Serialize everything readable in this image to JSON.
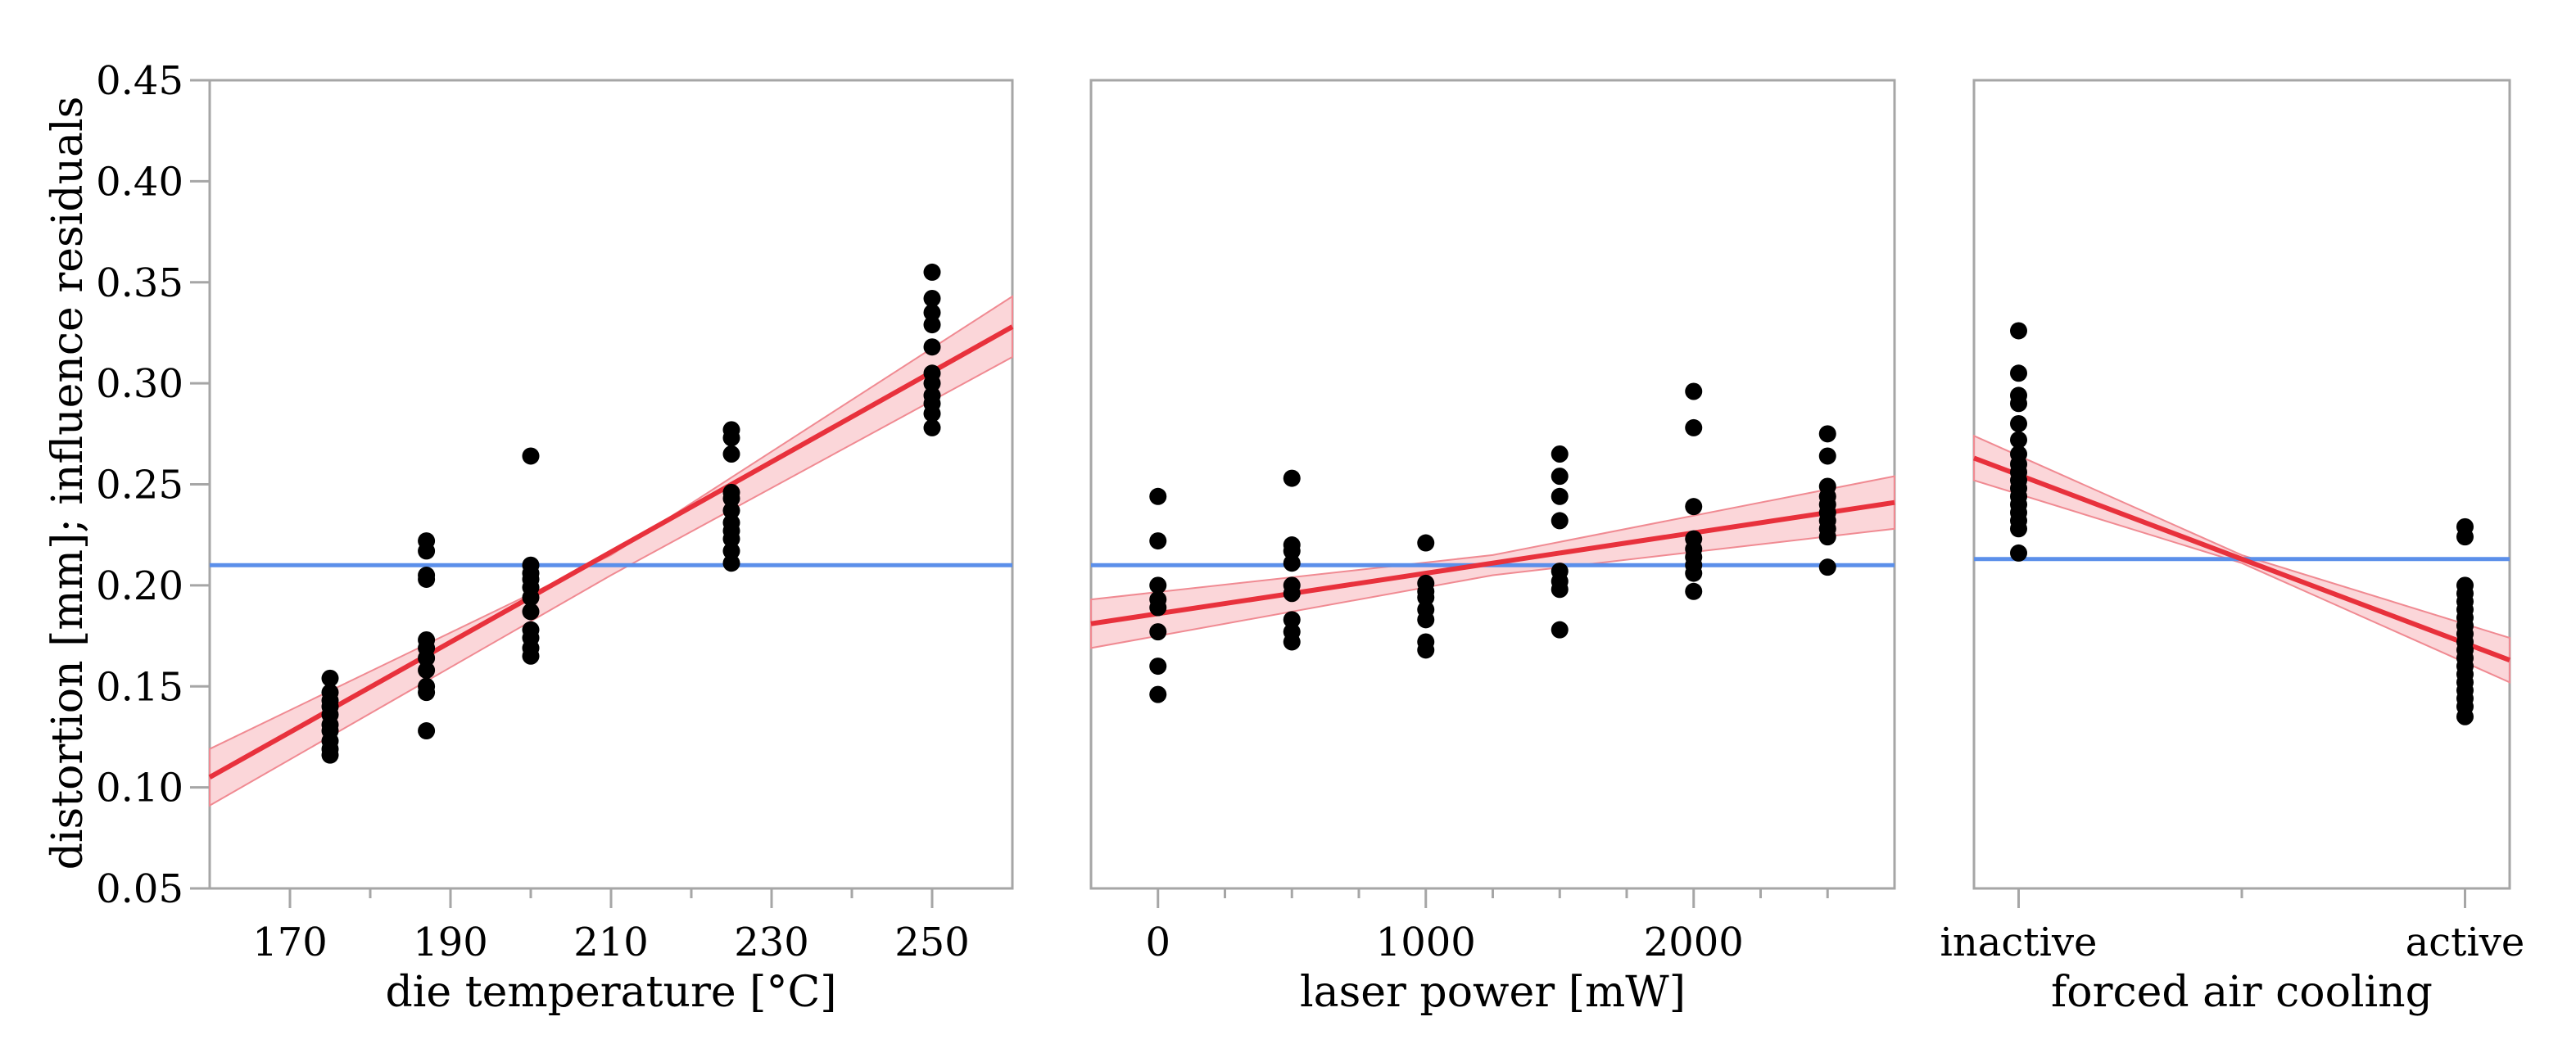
{
  "figure": {
    "ylabel": "distortion [mm]; influence residuals",
    "yticks": [
      "0.05",
      "0.10",
      "0.15",
      "0.20",
      "0.25",
      "0.30",
      "0.35",
      "0.40",
      "0.45"
    ],
    "colors": {
      "points": "#000000",
      "fit_line": "#e8313c",
      "confidence_band": "#f9c8cc",
      "mean_line": "#5b8fea",
      "frame": "#a6a6a6"
    }
  },
  "chart_data": [
    {
      "type": "scatter",
      "panel": "die-temperature",
      "xlabel": "die temperature [°C]",
      "xlim": [
        160,
        260
      ],
      "xticks": [
        170,
        190,
        210,
        230,
        250
      ],
      "xtick_labels": [
        "170",
        "190",
        "210",
        "230",
        "250"
      ],
      "minor_xticks": [
        180,
        200,
        220,
        240
      ],
      "ylim": [
        0.05,
        0.45
      ],
      "mean": 0.21,
      "fit": {
        "x": [
          160,
          260
        ],
        "y": [
          0.105,
          0.328
        ]
      },
      "band": {
        "x": [
          160,
          210,
          260
        ],
        "upper": [
          0.119,
          0.215,
          0.343
        ],
        "lower": [
          0.091,
          0.205,
          0.313
        ]
      },
      "points": [
        [
          175,
          0.154
        ],
        [
          175,
          0.147
        ],
        [
          175,
          0.143
        ],
        [
          175,
          0.14
        ],
        [
          175,
          0.136
        ],
        [
          175,
          0.131
        ],
        [
          175,
          0.128
        ],
        [
          175,
          0.123
        ],
        [
          175,
          0.119
        ],
        [
          175,
          0.116
        ],
        [
          187,
          0.222
        ],
        [
          187,
          0.217
        ],
        [
          187,
          0.205
        ],
        [
          187,
          0.203
        ],
        [
          187,
          0.173
        ],
        [
          187,
          0.169
        ],
        [
          187,
          0.164
        ],
        [
          187,
          0.158
        ],
        [
          187,
          0.15
        ],
        [
          187,
          0.147
        ],
        [
          187,
          0.128
        ],
        [
          200,
          0.264
        ],
        [
          200,
          0.21
        ],
        [
          200,
          0.206
        ],
        [
          200,
          0.203
        ],
        [
          200,
          0.199
        ],
        [
          200,
          0.194
        ],
        [
          200,
          0.187
        ],
        [
          200,
          0.178
        ],
        [
          200,
          0.174
        ],
        [
          200,
          0.169
        ],
        [
          200,
          0.165
        ],
        [
          225,
          0.277
        ],
        [
          225,
          0.273
        ],
        [
          225,
          0.265
        ],
        [
          225,
          0.246
        ],
        [
          225,
          0.243
        ],
        [
          225,
          0.237
        ],
        [
          225,
          0.231
        ],
        [
          225,
          0.227
        ],
        [
          225,
          0.223
        ],
        [
          225,
          0.217
        ],
        [
          225,
          0.211
        ],
        [
          250,
          0.355
        ],
        [
          250,
          0.342
        ],
        [
          250,
          0.335
        ],
        [
          250,
          0.329
        ],
        [
          250,
          0.318
        ],
        [
          250,
          0.305
        ],
        [
          250,
          0.3
        ],
        [
          250,
          0.294
        ],
        [
          250,
          0.29
        ],
        [
          250,
          0.285
        ],
        [
          250,
          0.278
        ]
      ]
    },
    {
      "type": "scatter",
      "panel": "laser-power",
      "xlabel": "laser power [mW]",
      "xlim": [
        -250,
        2750
      ],
      "xticks": [
        0,
        1000,
        2000
      ],
      "xtick_labels": [
        "0",
        "1000",
        "2000"
      ],
      "minor_xticks": [
        250,
        500,
        750,
        1250,
        1500,
        1750,
        2250,
        2500
      ],
      "ylim": [
        0.05,
        0.45
      ],
      "mean": 0.21,
      "fit": {
        "x": [
          -250,
          2750
        ],
        "y": [
          0.181,
          0.241
        ]
      },
      "band": {
        "x": [
          -250,
          1250,
          2750
        ],
        "upper": [
          0.193,
          0.215,
          0.254
        ],
        "lower": [
          0.169,
          0.205,
          0.228
        ]
      },
      "points": [
        [
          0,
          0.244
        ],
        [
          0,
          0.222
        ],
        [
          0,
          0.2
        ],
        [
          0,
          0.193
        ],
        [
          0,
          0.189
        ],
        [
          0,
          0.177
        ],
        [
          0,
          0.16
        ],
        [
          0,
          0.146
        ],
        [
          500,
          0.253
        ],
        [
          500,
          0.22
        ],
        [
          500,
          0.217
        ],
        [
          500,
          0.211
        ],
        [
          500,
          0.2
        ],
        [
          500,
          0.196
        ],
        [
          500,
          0.183
        ],
        [
          500,
          0.177
        ],
        [
          500,
          0.172
        ],
        [
          1000,
          0.221
        ],
        [
          1000,
          0.201
        ],
        [
          1000,
          0.197
        ],
        [
          1000,
          0.194
        ],
        [
          1000,
          0.188
        ],
        [
          1000,
          0.183
        ],
        [
          1000,
          0.172
        ],
        [
          1000,
          0.168
        ],
        [
          1500,
          0.265
        ],
        [
          1500,
          0.254
        ],
        [
          1500,
          0.244
        ],
        [
          1500,
          0.232
        ],
        [
          1500,
          0.207
        ],
        [
          1500,
          0.202
        ],
        [
          1500,
          0.198
        ],
        [
          1500,
          0.178
        ],
        [
          2000,
          0.296
        ],
        [
          2000,
          0.278
        ],
        [
          2000,
          0.239
        ],
        [
          2000,
          0.223
        ],
        [
          2000,
          0.218
        ],
        [
          2000,
          0.214
        ],
        [
          2000,
          0.21
        ],
        [
          2000,
          0.206
        ],
        [
          2000,
          0.197
        ],
        [
          2500,
          0.275
        ],
        [
          2500,
          0.264
        ],
        [
          2500,
          0.249
        ],
        [
          2500,
          0.244
        ],
        [
          2500,
          0.24
        ],
        [
          2500,
          0.236
        ],
        [
          2500,
          0.232
        ],
        [
          2500,
          0.228
        ],
        [
          2500,
          0.224
        ],
        [
          2500,
          0.209
        ]
      ]
    },
    {
      "type": "scatter",
      "panel": "forced-air-cooling",
      "xlabel": "forced air cooling",
      "categories": [
        "inactive",
        "active"
      ],
      "xlim": [
        -0.1,
        1.1
      ],
      "xticks": [
        0,
        1
      ],
      "xtick_labels": [
        "inactive",
        "active"
      ],
      "minor_xticks": [
        0.5
      ],
      "ylim": [
        0.05,
        0.45
      ],
      "mean": 0.213,
      "fit": {
        "x": [
          -0.1,
          1.1
        ],
        "y": [
          0.263,
          0.163
        ]
      },
      "band": {
        "x": [
          -0.1,
          0.5,
          1.1
        ],
        "upper": [
          0.274,
          0.215,
          0.174
        ],
        "lower": [
          0.252,
          0.211,
          0.152
        ]
      },
      "points": [
        [
          0,
          0.326
        ],
        [
          0,
          0.305
        ],
        [
          0,
          0.294
        ],
        [
          0,
          0.29
        ],
        [
          0,
          0.28
        ],
        [
          0,
          0.272
        ],
        [
          0,
          0.265
        ],
        [
          0,
          0.26
        ],
        [
          0,
          0.256
        ],
        [
          0,
          0.252
        ],
        [
          0,
          0.248
        ],
        [
          0,
          0.244
        ],
        [
          0,
          0.24
        ],
        [
          0,
          0.236
        ],
        [
          0,
          0.232
        ],
        [
          0,
          0.228
        ],
        [
          0,
          0.216
        ],
        [
          1,
          0.229
        ],
        [
          1,
          0.224
        ],
        [
          1,
          0.2
        ],
        [
          1,
          0.196
        ],
        [
          1,
          0.192
        ],
        [
          1,
          0.188
        ],
        [
          1,
          0.184
        ],
        [
          1,
          0.18
        ],
        [
          1,
          0.176
        ],
        [
          1,
          0.172
        ],
        [
          1,
          0.168
        ],
        [
          1,
          0.164
        ],
        [
          1,
          0.16
        ],
        [
          1,
          0.156
        ],
        [
          1,
          0.152
        ],
        [
          1,
          0.148
        ],
        [
          1,
          0.144
        ],
        [
          1,
          0.14
        ],
        [
          1,
          0.135
        ]
      ]
    }
  ]
}
